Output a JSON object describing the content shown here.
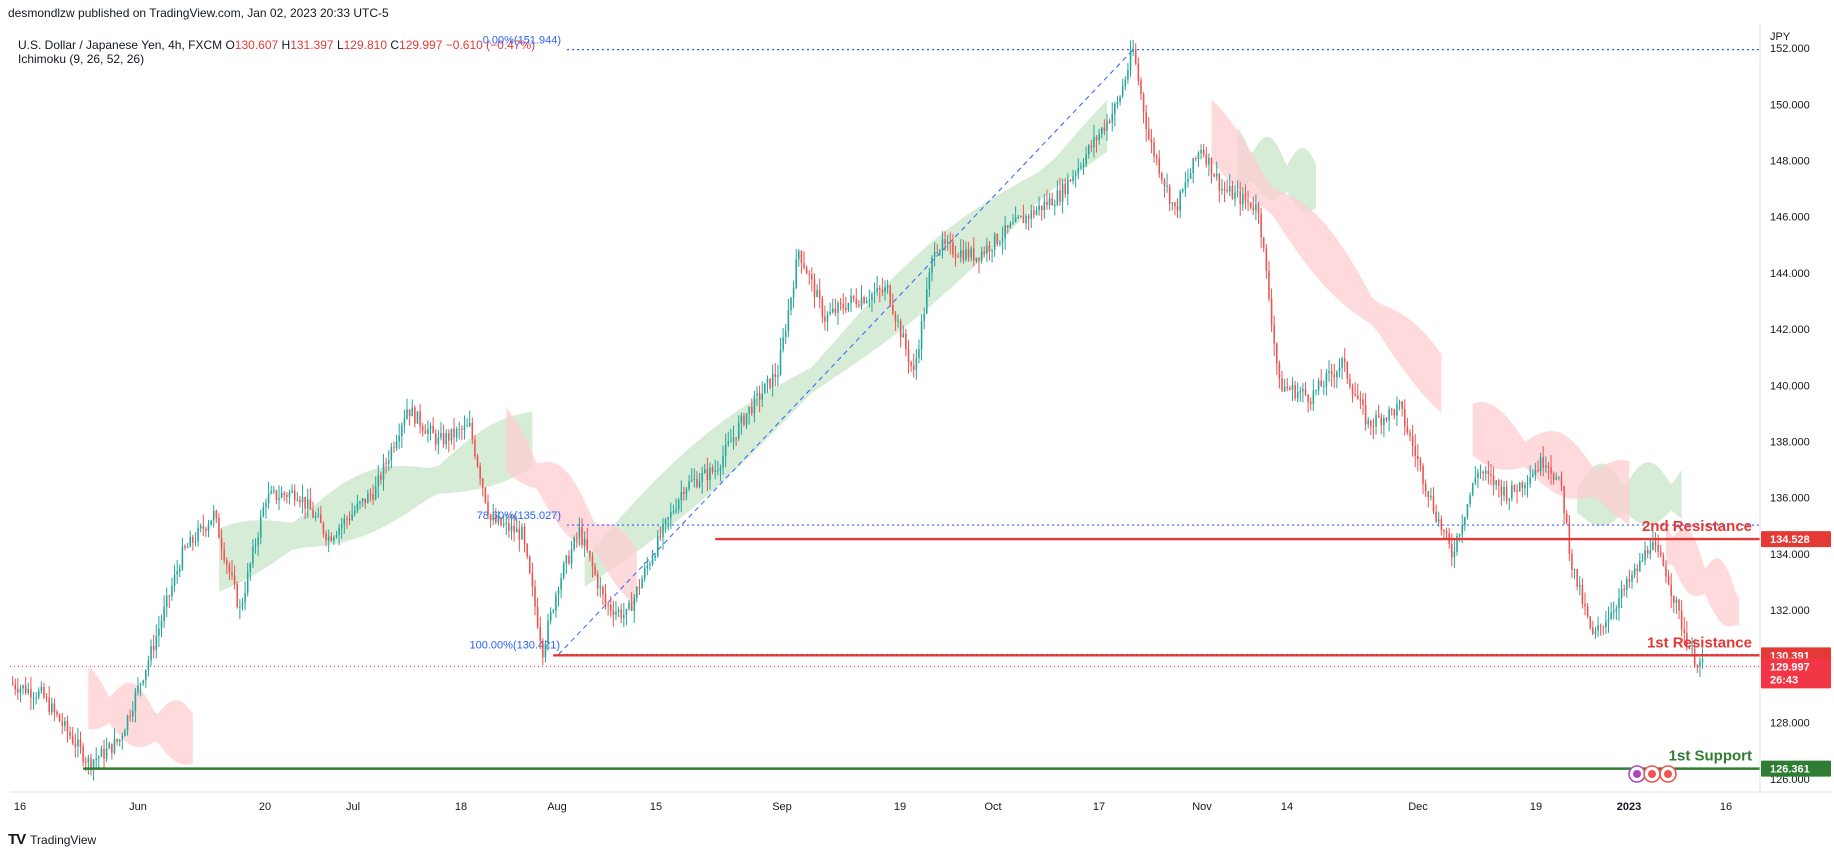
{
  "header": {
    "publisher": "desmondlzw published on TradingView.com, Jan 02, 2023 20:33 UTC-5"
  },
  "legend": {
    "symbol": "U.S. Dollar / Japanese Yen, 4h, FXCM",
    "o_label": "O",
    "o": "130.607",
    "h_label": "H",
    "h": "131.397",
    "l_label": "L",
    "l": "129.810",
    "c_label": "C",
    "c": "129.997",
    "change": "−0.610 (−0.47%)",
    "indicator": "Ichimoku (9, 26, 52, 26)"
  },
  "footer": {
    "logo_text": "TV",
    "brand": "TradingView"
  },
  "chart_data": {
    "type": "candlestick",
    "currency": "JPY",
    "ylim": [
      125.6,
      152.5
    ],
    "y_ticks": [
      "152.000",
      "150.000",
      "148.000",
      "146.000",
      "144.000",
      "142.000",
      "140.000",
      "138.000",
      "136.000",
      "134.000",
      "132.000",
      "130.000",
      "128.000",
      "126.000"
    ],
    "x_ticks": [
      "16",
      "Jun",
      "20",
      "Jul",
      "18",
      "Aug",
      "15",
      "Sep",
      "19",
      "Oct",
      "17",
      "Nov",
      "14",
      "Dec",
      "19",
      "2023",
      "16"
    ],
    "price_path": [
      [
        0,
        129.4
      ],
      [
        12,
        129.0
      ],
      [
        24,
        127.4
      ],
      [
        30,
        126.6
      ],
      [
        36,
        126.9
      ],
      [
        42,
        127.4
      ],
      [
        54,
        130.5
      ],
      [
        66,
        134.0
      ],
      [
        78,
        135.4
      ],
      [
        88,
        132.0
      ],
      [
        98,
        136.0
      ],
      [
        110,
        136.2
      ],
      [
        122,
        134.6
      ],
      [
        140,
        136.3
      ],
      [
        152,
        139.2
      ],
      [
        164,
        138.0
      ],
      [
        176,
        138.5
      ],
      [
        184,
        135.2
      ],
      [
        196,
        134.7
      ],
      [
        204,
        130.6
      ],
      [
        210,
        133.0
      ],
      [
        218,
        134.8
      ],
      [
        228,
        132.2
      ],
      [
        236,
        131.8
      ],
      [
        246,
        134.0
      ],
      [
        258,
        136.4
      ],
      [
        270,
        137.0
      ],
      [
        282,
        139.0
      ],
      [
        294,
        140.5
      ],
      [
        302,
        144.8
      ],
      [
        312,
        142.4
      ],
      [
        322,
        143.0
      ],
      [
        336,
        143.4
      ],
      [
        346,
        140.4
      ],
      [
        354,
        145.0
      ],
      [
        370,
        144.6
      ],
      [
        386,
        145.8
      ],
      [
        402,
        146.8
      ],
      [
        414,
        148.5
      ],
      [
        424,
        150.0
      ],
      [
        430,
        151.9
      ],
      [
        436,
        148.8
      ],
      [
        446,
        146.2
      ],
      [
        456,
        148.5
      ],
      [
        464,
        147.0
      ],
      [
        478,
        146.3
      ],
      [
        486,
        140.0
      ],
      [
        498,
        139.6
      ],
      [
        510,
        140.8
      ],
      [
        520,
        138.6
      ],
      [
        532,
        139.2
      ],
      [
        546,
        135.4
      ],
      [
        552,
        134.0
      ],
      [
        562,
        137.0
      ],
      [
        574,
        136.1
      ],
      [
        588,
        137.4
      ],
      [
        594,
        136.3
      ],
      [
        598,
        133.6
      ],
      [
        606,
        131.0
      ],
      [
        616,
        132.4
      ],
      [
        624,
        133.6
      ],
      [
        628,
        134.4
      ],
      [
        634,
        133.4
      ],
      [
        640,
        131.5
      ],
      [
        644,
        130.4
      ],
      [
        648,
        130.0
      ]
    ],
    "cloud_green": [
      [
        [
          80,
          133.5
        ],
        [
          200,
          137.8
        ]
      ],
      [
        [
          220,
          133.2
        ],
        [
          420,
          149.0
        ]
      ],
      [
        [
          470,
          147.8
        ],
        [
          500,
          146.9
        ]
      ],
      [
        [
          600,
          135.8
        ],
        [
          640,
          135.9
        ]
      ]
    ],
    "cloud_red": [
      [
        [
          30,
          128.6
        ],
        [
          70,
          127.2
        ]
      ],
      [
        [
          190,
          137.8
        ],
        [
          240,
          132.9
        ]
      ],
      [
        [
          460,
          148.8
        ],
        [
          548,
          139.8
        ]
      ],
      [
        [
          560,
          138.2
        ],
        [
          620,
          135.9
        ]
      ],
      [
        [
          634,
          134.2
        ],
        [
          662,
          131.8
        ]
      ]
    ],
    "fib_levels": [
      {
        "label": "0.00%(151.944)",
        "value": 151.944
      },
      {
        "label": "78.60%(135.027)",
        "value": 135.027
      },
      {
        "label": "100.00%(130.421)",
        "value": 130.421
      }
    ],
    "fib_trend": {
      "from": [
        210,
        130.421
      ],
      "to": [
        430,
        151.944
      ]
    },
    "levels": [
      {
        "label": "2nd Resistance",
        "value": 134.528,
        "tag": "134.528",
        "color": "#e53935"
      },
      {
        "label": "1st Resistance",
        "value": 130.391,
        "tag": "130.391",
        "color": "#e53935"
      },
      {
        "label": "1st Support",
        "value": 126.361,
        "tag": "126.361",
        "color": "#2e7d32"
      }
    ],
    "last_price": {
      "value": 129.997,
      "tag": "129.997",
      "countdown": "26:43",
      "color": "#f23645"
    },
    "colors": {
      "up": "#26a69a",
      "down": "#ef5350",
      "fib": "#2962ff",
      "cloud_green": "#c8e6c9",
      "cloud_red": "#ffcdd2"
    }
  }
}
